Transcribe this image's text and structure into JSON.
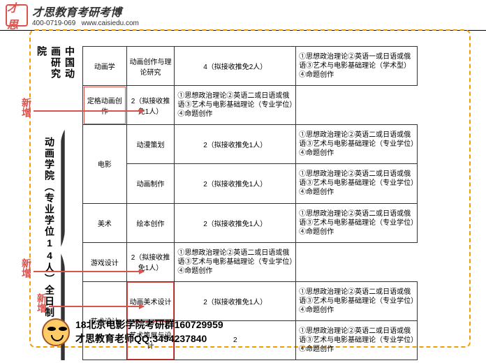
{
  "header": {
    "badge": "才思",
    "title": "才思教育考研考博",
    "phone": "400-0719-069",
    "url": "www.caisiedu.com"
  },
  "labels": {
    "institute": "中国动画研究院",
    "college": "动画学院（专业学位14人）全日制",
    "new": "新增"
  },
  "colors": {
    "accent": "#d9534f",
    "dash": "#f0a000"
  },
  "exam_common": "①思想政治理论②英语二或日语或俄语③艺术与电影基础理论（专业学位）④命题创作",
  "exam_academic": "①思想政治理论②英语一或日语或俄语③艺术与电影基础理论（学术型）④命题创作",
  "rows": [
    {
      "c1": "动画学",
      "c2": "动画创作与理论研究",
      "c3": "4（拟接收推免2人）",
      "c4k": "a"
    },
    {
      "c1": "",
      "c2": "定格动画创作",
      "c3": "2（拟接收推免1人）",
      "c4k": "c",
      "hl": true,
      "c1span": 0
    },
    {
      "c1": "电影",
      "c2": "动漫策划",
      "c3": "2（拟接收推免1人）",
      "c4k": "c",
      "c1span": 2
    },
    {
      "c1": "",
      "c2": "动画制作",
      "c3": "2（拟接收推免1人）",
      "c4k": "c",
      "c1span": 0
    },
    {
      "c1": "美术",
      "c2": "绘本创作",
      "c3": "2（拟接收推免1人）",
      "c4k": "c"
    },
    {
      "c1": "",
      "c2": "游戏设计",
      "c3": "2（拟接收推免1人）",
      "c4k": "c",
      "c1span": 0
    },
    {
      "c1": "艺术设计",
      "c2": "动画美术设计",
      "c3": "2（拟接收推免1人）",
      "c4k": "c",
      "hl": true,
      "c1span": 2
    },
    {
      "c1": "",
      "c2": "艺术策展与设计",
      "c3": "2",
      "c4k": "c",
      "hl": true,
      "c1span": 0
    }
  ],
  "footer": {
    "line1": "18北京电影学院考研群160729959",
    "line2": "才思教育老师QQ:3494237840"
  }
}
